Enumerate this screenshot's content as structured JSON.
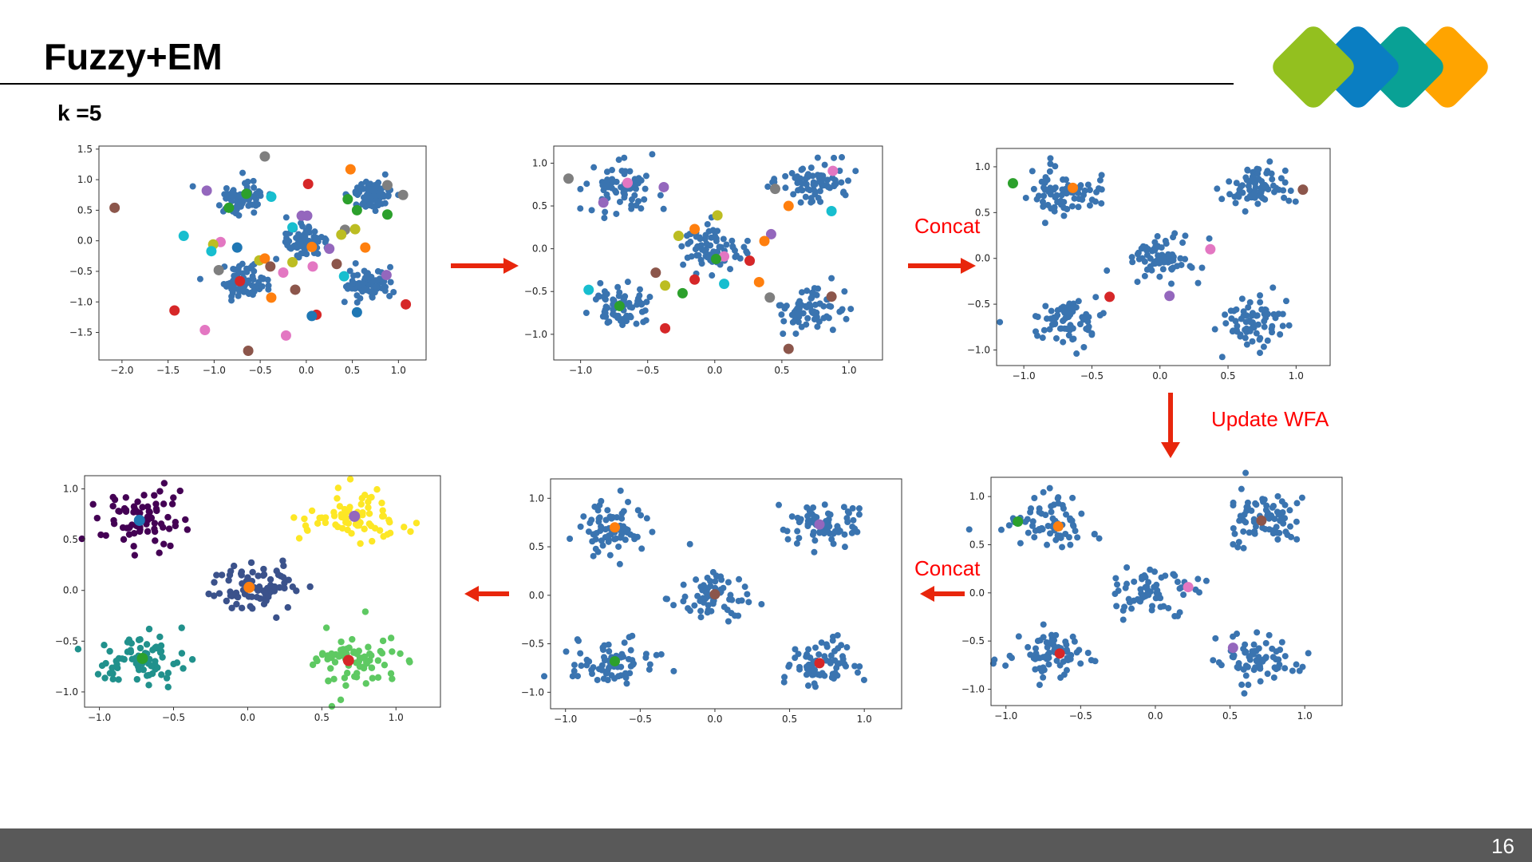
{
  "slide": {
    "title": "Fuzzy+EM",
    "subtitle": "k =5",
    "page_number": "16",
    "logo": {
      "name": "four-diamond-logo",
      "colors": [
        "#93C01F",
        "#0A7EC2",
        "#09A195",
        "#FFA400"
      ]
    },
    "annotations": {
      "concat_top": "Concat",
      "update_wfa": "Update WFA",
      "concat_bottom": "Concat"
    },
    "accent_color": "#E8260C",
    "footer_color": "#595959"
  },
  "chart_data": [
    {
      "id": "plot-1-initial-candidates",
      "type": "scatter",
      "title": "",
      "xlim": [
        -2.25,
        1.3
      ],
      "ylim": [
        -1.95,
        1.55
      ],
      "xticks": [
        -2.0,
        -1.5,
        -1.0,
        -0.5,
        0.0,
        0.5,
        1.0
      ],
      "yticks": [
        -1.5,
        -1.0,
        -0.5,
        0.0,
        0.5,
        1.0,
        1.5
      ],
      "data_clusters": [
        {
          "center": [
            -0.7,
            0.7
          ],
          "spread": 0.15
        },
        {
          "center": [
            0.7,
            0.75
          ],
          "spread": 0.15
        },
        {
          "center": [
            0.0,
            0.0
          ],
          "spread": 0.15
        },
        {
          "center": [
            -0.7,
            -0.65
          ],
          "spread": 0.15
        },
        {
          "center": [
            0.7,
            -0.7
          ],
          "spread": 0.16
        }
      ],
      "candidate_centroids": [
        {
          "x": -0.45,
          "y": 1.38,
          "color": "#7f7f7f"
        },
        {
          "x": 0.48,
          "y": 1.17,
          "color": "#ff7f0e"
        },
        {
          "x": 0.02,
          "y": 0.93,
          "color": "#d62728"
        },
        {
          "x": 0.88,
          "y": 0.91,
          "color": "#7f7f7f"
        },
        {
          "x": -1.08,
          "y": 0.82,
          "color": "#9467bd"
        },
        {
          "x": -0.65,
          "y": 0.77,
          "color": "#2ca02c"
        },
        {
          "x": -0.38,
          "y": 0.72,
          "color": "#17becf"
        },
        {
          "x": 1.05,
          "y": 0.75,
          "color": "#7f7f7f"
        },
        {
          "x": 0.45,
          "y": 0.68,
          "color": "#2ca02c"
        },
        {
          "x": -2.08,
          "y": 0.54,
          "color": "#8c564b"
        },
        {
          "x": -0.84,
          "y": 0.54,
          "color": "#2ca02c"
        },
        {
          "x": 0.55,
          "y": 0.5,
          "color": "#2ca02c"
        },
        {
          "x": 0.88,
          "y": 0.43,
          "color": "#2ca02c"
        },
        {
          "x": -0.05,
          "y": 0.41,
          "color": "#9467bd"
        },
        {
          "x": 0.01,
          "y": 0.41,
          "color": "#9467bd"
        },
        {
          "x": -0.15,
          "y": 0.22,
          "color": "#17becf"
        },
        {
          "x": 0.42,
          "y": 0.18,
          "color": "#7f7f7f"
        },
        {
          "x": 0.53,
          "y": 0.19,
          "color": "#bcbd22"
        },
        {
          "x": 0.38,
          "y": 0.1,
          "color": "#bcbd22"
        },
        {
          "x": -1.33,
          "y": 0.08,
          "color": "#17becf"
        },
        {
          "x": -0.93,
          "y": -0.02,
          "color": "#e377c2"
        },
        {
          "x": -1.01,
          "y": -0.06,
          "color": "#bcbd22"
        },
        {
          "x": -0.75,
          "y": -0.11,
          "color": "#1f77b4"
        },
        {
          "x": 0.06,
          "y": -0.1,
          "color": "#ff7f0e"
        },
        {
          "x": 0.25,
          "y": -0.13,
          "color": "#9467bd"
        },
        {
          "x": 0.64,
          "y": -0.11,
          "color": "#ff7f0e"
        },
        {
          "x": -1.03,
          "y": -0.17,
          "color": "#17becf"
        },
        {
          "x": -0.51,
          "y": -0.32,
          "color": "#bcbd22"
        },
        {
          "x": -0.45,
          "y": -0.29,
          "color": "#ff7f0e"
        },
        {
          "x": -0.15,
          "y": -0.35,
          "color": "#bcbd22"
        },
        {
          "x": -0.39,
          "y": -0.42,
          "color": "#8c564b"
        },
        {
          "x": 0.07,
          "y": -0.42,
          "color": "#e377c2"
        },
        {
          "x": 0.33,
          "y": -0.38,
          "color": "#8c564b"
        },
        {
          "x": -0.95,
          "y": -0.48,
          "color": "#7f7f7f"
        },
        {
          "x": -0.25,
          "y": -0.52,
          "color": "#e377c2"
        },
        {
          "x": 0.41,
          "y": -0.58,
          "color": "#17becf"
        },
        {
          "x": 0.87,
          "y": -0.56,
          "color": "#9467bd"
        },
        {
          "x": -0.72,
          "y": -0.66,
          "color": "#d62728"
        },
        {
          "x": -0.12,
          "y": -0.8,
          "color": "#8c564b"
        },
        {
          "x": -0.38,
          "y": -0.93,
          "color": "#ff7f0e"
        },
        {
          "x": 1.08,
          "y": -1.04,
          "color": "#d62728"
        },
        {
          "x": -1.43,
          "y": -1.14,
          "color": "#d62728"
        },
        {
          "x": 0.11,
          "y": -1.21,
          "color": "#d62728"
        },
        {
          "x": 0.06,
          "y": -1.23,
          "color": "#1f77b4"
        },
        {
          "x": 0.55,
          "y": -1.17,
          "color": "#1f77b4"
        },
        {
          "x": -1.1,
          "y": -1.46,
          "color": "#e377c2"
        },
        {
          "x": -0.22,
          "y": -1.55,
          "color": "#e377c2"
        },
        {
          "x": -0.63,
          "y": -1.8,
          "color": "#8c564b"
        }
      ]
    },
    {
      "id": "plot-2-after-step",
      "type": "scatter",
      "xlim": [
        -1.2,
        1.25
      ],
      "ylim": [
        -1.3,
        1.2
      ],
      "xticks": [
        -1.0,
        -0.5,
        0.0,
        0.5,
        1.0
      ],
      "yticks": [
        -1.0,
        -0.5,
        0.0,
        0.5,
        1.0
      ],
      "candidate_centroids": [
        {
          "x": -1.09,
          "y": 0.82,
          "color": "#7f7f7f"
        },
        {
          "x": -0.65,
          "y": 0.77,
          "color": "#e377c2"
        },
        {
          "x": -0.38,
          "y": 0.72,
          "color": "#9467bd"
        },
        {
          "x": -0.83,
          "y": 0.54,
          "color": "#9467bd"
        },
        {
          "x": 0.45,
          "y": 0.7,
          "color": "#7f7f7f"
        },
        {
          "x": 0.88,
          "y": 0.91,
          "color": "#e377c2"
        },
        {
          "x": 0.55,
          "y": 0.5,
          "color": "#ff7f0e"
        },
        {
          "x": 0.87,
          "y": 0.44,
          "color": "#17becf"
        },
        {
          "x": 0.02,
          "y": 0.39,
          "color": "#bcbd22"
        },
        {
          "x": -0.15,
          "y": 0.23,
          "color": "#ff7f0e"
        },
        {
          "x": -0.27,
          "y": 0.15,
          "color": "#bcbd22"
        },
        {
          "x": 0.42,
          "y": 0.17,
          "color": "#9467bd"
        },
        {
          "x": 0.37,
          "y": 0.09,
          "color": "#ff7f0e"
        },
        {
          "x": 0.07,
          "y": -0.09,
          "color": "#e377c2"
        },
        {
          "x": 0.01,
          "y": -0.12,
          "color": "#2ca02c"
        },
        {
          "x": 0.26,
          "y": -0.14,
          "color": "#d62728"
        },
        {
          "x": -0.44,
          "y": -0.28,
          "color": "#8c564b"
        },
        {
          "x": -0.15,
          "y": -0.36,
          "color": "#d62728"
        },
        {
          "x": 0.07,
          "y": -0.41,
          "color": "#17becf"
        },
        {
          "x": 0.33,
          "y": -0.39,
          "color": "#ff7f0e"
        },
        {
          "x": -0.37,
          "y": -0.43,
          "color": "#bcbd22"
        },
        {
          "x": -0.24,
          "y": -0.52,
          "color": "#2ca02c"
        },
        {
          "x": -0.94,
          "y": -0.48,
          "color": "#17becf"
        },
        {
          "x": 0.41,
          "y": -0.57,
          "color": "#7f7f7f"
        },
        {
          "x": 0.87,
          "y": -0.56,
          "color": "#8c564b"
        },
        {
          "x": -0.71,
          "y": -0.67,
          "color": "#2ca02c"
        },
        {
          "x": -0.37,
          "y": -0.93,
          "color": "#d62728"
        },
        {
          "x": 0.55,
          "y": -1.17,
          "color": "#8c564b"
        }
      ]
    },
    {
      "id": "plot-3-after-concat",
      "type": "scatter",
      "xlim": [
        -1.2,
        1.25
      ],
      "ylim": [
        -1.17,
        1.2
      ],
      "xticks": [
        -1.0,
        -0.5,
        0.0,
        0.5,
        1.0
      ],
      "yticks": [
        -1.0,
        -0.5,
        0.0,
        0.5,
        1.0
      ],
      "candidate_centroids": [
        {
          "x": -1.08,
          "y": 0.82,
          "color": "#2ca02c"
        },
        {
          "x": -0.64,
          "y": 0.77,
          "color": "#ff7f0e"
        },
        {
          "x": 1.05,
          "y": 0.75,
          "color": "#8c564b"
        },
        {
          "x": 0.37,
          "y": 0.1,
          "color": "#e377c2"
        },
        {
          "x": -0.37,
          "y": -0.42,
          "color": "#d62728"
        },
        {
          "x": 0.07,
          "y": -0.41,
          "color": "#9467bd"
        }
      ]
    },
    {
      "id": "plot-6-after-update-wfa",
      "type": "scatter",
      "xlim": [
        -1.1,
        1.25
      ],
      "ylim": [
        -1.17,
        1.2
      ],
      "xticks": [
        -1.0,
        -0.5,
        0.0,
        0.5,
        1.0
      ],
      "yticks": [
        -1.0,
        -0.5,
        0.0,
        0.5,
        1.0
      ],
      "candidate_centroids": [
        {
          "x": -0.92,
          "y": 0.74,
          "color": "#2ca02c"
        },
        {
          "x": -0.65,
          "y": 0.69,
          "color": "#ff7f0e"
        },
        {
          "x": 0.71,
          "y": 0.75,
          "color": "#8c564b"
        },
        {
          "x": 0.22,
          "y": 0.06,
          "color": "#e377c2"
        },
        {
          "x": -0.64,
          "y": -0.63,
          "color": "#d62728"
        },
        {
          "x": 0.52,
          "y": -0.57,
          "color": "#9467bd"
        }
      ]
    },
    {
      "id": "plot-5-after-concat",
      "type": "scatter",
      "xlim": [
        -1.1,
        1.25
      ],
      "ylim": [
        -1.17,
        1.2
      ],
      "xticks": [
        -1.0,
        -0.5,
        0.0,
        0.5,
        1.0
      ],
      "yticks": [
        -1.0,
        -0.5,
        0.0,
        0.5,
        1.0
      ],
      "candidate_centroids": [
        {
          "x": -0.67,
          "y": 0.7,
          "color": "#ff7f0e"
        },
        {
          "x": 0.7,
          "y": 0.73,
          "color": "#9467bd"
        },
        {
          "x": 0.0,
          "y": 0.01,
          "color": "#8c564b"
        },
        {
          "x": -0.67,
          "y": -0.68,
          "color": "#2ca02c"
        },
        {
          "x": 0.7,
          "y": -0.7,
          "color": "#d62728"
        }
      ]
    },
    {
      "id": "plot-4-final-clusters",
      "type": "scatter",
      "xlim": [
        -1.1,
        1.3
      ],
      "ylim": [
        -1.15,
        1.13
      ],
      "xticks": [
        -1.0,
        -0.5,
        0.0,
        0.5,
        1.0
      ],
      "yticks": [
        -1.0,
        -0.5,
        0.0,
        0.5,
        1.0
      ],
      "clusters": [
        {
          "name": "cluster-1",
          "color": "#440154",
          "center": [
            -0.73,
            0.69
          ],
          "centroid_color": "#1f77b4"
        },
        {
          "name": "cluster-2",
          "color": "#fde725",
          "center": [
            0.72,
            0.73
          ],
          "centroid_color": "#9467bd"
        },
        {
          "name": "cluster-3",
          "color": "#3b528b",
          "center": [
            0.01,
            0.03
          ],
          "centroid_color": "#ff7f0e"
        },
        {
          "name": "cluster-4",
          "color": "#21918c",
          "center": [
            -0.71,
            -0.67
          ],
          "centroid_color": "#2ca02c"
        },
        {
          "name": "cluster-5",
          "color": "#5ec962",
          "center": [
            0.68,
            -0.69
          ],
          "centroid_color": "#d62728"
        }
      ]
    }
  ]
}
